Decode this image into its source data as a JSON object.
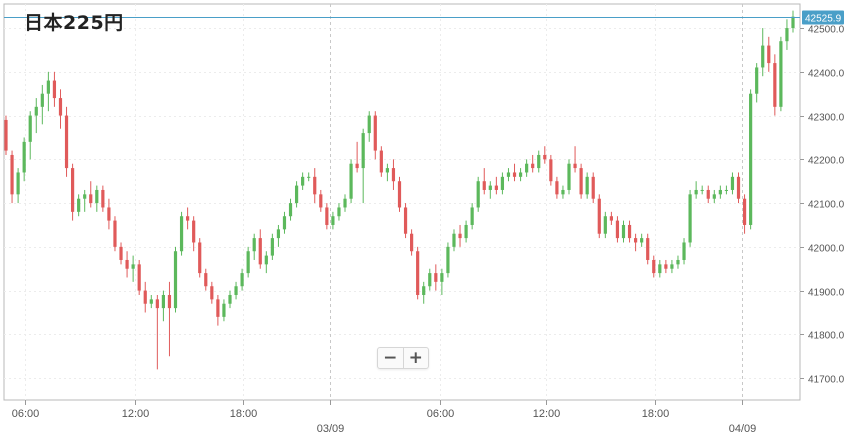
{
  "chart_data": {
    "type": "candlestick",
    "title": "日本225円",
    "ylim": [
      41650,
      42555
    ],
    "y_ticks": [
      41700,
      41800,
      41900,
      42000,
      42100,
      42200,
      42300,
      42400,
      42500
    ],
    "y_tick_labels": [
      "41700.0",
      "41800.0",
      "41900.0",
      "42000.0",
      "42100.0",
      "42200.0",
      "42300.0",
      "42400.0",
      "42500.0"
    ],
    "x_tick_labels": [
      "06:00",
      "12:00",
      "18:00",
      "03/09",
      "06:00",
      "12:00",
      "18:00",
      "04/09"
    ],
    "day_separators": [
      "03/09",
      "04/09"
    ],
    "last_price": 42525.9,
    "last_price_label": "42525.9",
    "up_color": "#5cb85c",
    "down_color": "#e05a5a",
    "price_line_color": "#4a9fc8",
    "grid": true,
    "candles": [
      [
        42290,
        42300,
        42210,
        42220
      ],
      [
        42210,
        42220,
        42100,
        42120
      ],
      [
        42120,
        42180,
        42100,
        42170
      ],
      [
        42170,
        42250,
        42150,
        42240
      ],
      [
        42240,
        42310,
        42200,
        42300
      ],
      [
        42300,
        42340,
        42260,
        42320
      ],
      [
        42320,
        42370,
        42280,
        42350
      ],
      [
        42350,
        42400,
        42310,
        42380
      ],
      [
        42380,
        42400,
        42320,
        42340
      ],
      [
        42340,
        42360,
        42270,
        42300
      ],
      [
        42300,
        42320,
        42160,
        42180
      ],
      [
        42180,
        42190,
        42060,
        42080
      ],
      [
        42080,
        42120,
        42070,
        42110
      ],
      [
        42110,
        42130,
        42080,
        42120
      ],
      [
        42120,
        42150,
        42090,
        42100
      ],
      [
        42100,
        42140,
        42080,
        42130
      ],
      [
        42130,
        42140,
        42080,
        42090
      ],
      [
        42090,
        42110,
        42040,
        42060
      ],
      [
        42060,
        42070,
        41990,
        42000
      ],
      [
        42000,
        42010,
        41960,
        41970
      ],
      [
        41970,
        41990,
        41930,
        41950
      ],
      [
        41950,
        41980,
        41920,
        41960
      ],
      [
        41960,
        41970,
        41890,
        41900
      ],
      [
        41900,
        41920,
        41850,
        41870
      ],
      [
        41870,
        41890,
        41860,
        41880
      ],
      [
        41880,
        41890,
        41720,
        41860
      ],
      [
        41860,
        41900,
        41830,
        41890
      ],
      [
        41890,
        41920,
        41750,
        41860
      ],
      [
        41860,
        42000,
        41850,
        41990
      ],
      [
        41990,
        42080,
        41980,
        42070
      ],
      [
        42070,
        42090,
        42040,
        42060
      ],
      [
        42060,
        42070,
        41990,
        42010
      ],
      [
        42010,
        42020,
        41930,
        41940
      ],
      [
        41940,
        41950,
        41900,
        41910
      ],
      [
        41910,
        41920,
        41870,
        41880
      ],
      [
        41880,
        41890,
        41820,
        41840
      ],
      [
        41840,
        41880,
        41830,
        41870
      ],
      [
        41870,
        41900,
        41860,
        41890
      ],
      [
        41890,
        41920,
        41880,
        41910
      ],
      [
        41910,
        41950,
        41900,
        41940
      ],
      [
        41940,
        42000,
        41930,
        41990
      ],
      [
        41990,
        42030,
        41970,
        42020
      ],
      [
        42020,
        42040,
        41950,
        41960
      ],
      [
        41960,
        41990,
        41940,
        41980
      ],
      [
        41980,
        42030,
        41970,
        42020
      ],
      [
        42020,
        42050,
        42000,
        42040
      ],
      [
        42040,
        42080,
        42030,
        42070
      ],
      [
        42070,
        42110,
        42060,
        42100
      ],
      [
        42100,
        42150,
        42090,
        42140
      ],
      [
        42140,
        42170,
        42130,
        42160
      ],
      [
        42160,
        42170,
        42150,
        42160
      ],
      [
        42160,
        42180,
        42100,
        42120
      ],
      [
        42120,
        42130,
        42080,
        42090
      ],
      [
        42090,
        42100,
        42040,
        42050
      ],
      [
        42050,
        42080,
        42040,
        42070
      ],
      [
        42070,
        42100,
        42060,
        42090
      ],
      [
        42090,
        42120,
        42080,
        42110
      ],
      [
        42110,
        42200,
        42100,
        42190
      ],
      [
        42190,
        42240,
        42170,
        42180
      ],
      [
        42180,
        42270,
        42100,
        42260
      ],
      [
        42260,
        42310,
        42240,
        42300
      ],
      [
        42300,
        42310,
        42200,
        42220
      ],
      [
        42220,
        42230,
        42160,
        42170
      ],
      [
        42170,
        42190,
        42150,
        42180
      ],
      [
        42180,
        42200,
        42130,
        42150
      ],
      [
        42150,
        42160,
        42080,
        42090
      ],
      [
        42090,
        42100,
        42020,
        42030
      ],
      [
        42030,
        42040,
        41980,
        41990
      ],
      [
        41990,
        42000,
        41880,
        41890
      ],
      [
        41890,
        41920,
        41870,
        41910
      ],
      [
        41910,
        41950,
        41900,
        41940
      ],
      [
        41940,
        41960,
        41900,
        41920
      ],
      [
        41920,
        41950,
        41890,
        41940
      ],
      [
        41940,
        42010,
        41930,
        42000
      ],
      [
        42000,
        42040,
        41990,
        42030
      ],
      [
        42030,
        42050,
        42000,
        42020
      ],
      [
        42020,
        42060,
        42010,
        42050
      ],
      [
        42050,
        42100,
        42040,
        42090
      ],
      [
        42090,
        42160,
        42080,
        42150
      ],
      [
        42150,
        42180,
        42120,
        42130
      ],
      [
        42130,
        42150,
        42110,
        42140
      ],
      [
        42140,
        42160,
        42120,
        42130
      ],
      [
        42130,
        42170,
        42120,
        42160
      ],
      [
        42160,
        42180,
        42150,
        42170
      ],
      [
        42170,
        42190,
        42150,
        42160
      ],
      [
        42160,
        42180,
        42150,
        42170
      ],
      [
        42170,
        42200,
        42160,
        42190
      ],
      [
        42190,
        42210,
        42170,
        42180
      ],
      [
        42180,
        42220,
        42170,
        42210
      ],
      [
        42210,
        42230,
        42190,
        42200
      ],
      [
        42200,
        42210,
        42140,
        42150
      ],
      [
        42150,
        42160,
        42110,
        42120
      ],
      [
        42120,
        42140,
        42110,
        42130
      ],
      [
        42130,
        42200,
        42120,
        42190
      ],
      [
        42190,
        42230,
        42170,
        42180
      ],
      [
        42180,
        42190,
        42110,
        42120
      ],
      [
        42120,
        42170,
        42110,
        42160
      ],
      [
        42160,
        42170,
        42100,
        42110
      ],
      [
        42110,
        42120,
        42020,
        42030
      ],
      [
        42030,
        42080,
        42020,
        42070
      ],
      [
        42070,
        42080,
        42050,
        42060
      ],
      [
        42060,
        42070,
        42010,
        42020
      ],
      [
        42020,
        42060,
        42010,
        42050
      ],
      [
        42050,
        42060,
        42010,
        42020
      ],
      [
        42020,
        42030,
        41990,
        42010
      ],
      [
        42010,
        42030,
        42000,
        42020
      ],
      [
        42020,
        42030,
        41960,
        41970
      ],
      [
        41970,
        41980,
        41930,
        41940
      ],
      [
        41940,
        41970,
        41930,
        41960
      ],
      [
        41960,
        41970,
        41940,
        41950
      ],
      [
        41950,
        41970,
        41940,
        41960
      ],
      [
        41960,
        41980,
        41950,
        41970
      ],
      [
        41970,
        42020,
        41960,
        42010
      ],
      [
        42010,
        42130,
        42000,
        42120
      ],
      [
        42120,
        42150,
        42110,
        42130
      ],
      [
        42130,
        42140,
        42120,
        42130
      ],
      [
        42130,
        42140,
        42100,
        42110
      ],
      [
        42110,
        42130,
        42100,
        42120
      ],
      [
        42120,
        42140,
        42110,
        42130
      ],
      [
        42130,
        42140,
        42120,
        42130
      ],
      [
        42130,
        42170,
        42120,
        42160
      ],
      [
        42160,
        42170,
        42100,
        42110
      ],
      [
        42110,
        42120,
        42030,
        42050
      ],
      [
        42050,
        42360,
        42040,
        42350
      ],
      [
        42350,
        42420,
        42330,
        42410
      ],
      [
        42410,
        42500,
        42390,
        42460
      ],
      [
        42460,
        42480,
        42400,
        42420
      ],
      [
        42420,
        42440,
        42300,
        42320
      ],
      [
        42320,
        42480,
        42310,
        42470
      ],
      [
        42470,
        42520,
        42450,
        42500
      ],
      [
        42500,
        42540,
        42490,
        42526
      ]
    ]
  },
  "zoom": {
    "minus": "−",
    "plus": "+"
  }
}
